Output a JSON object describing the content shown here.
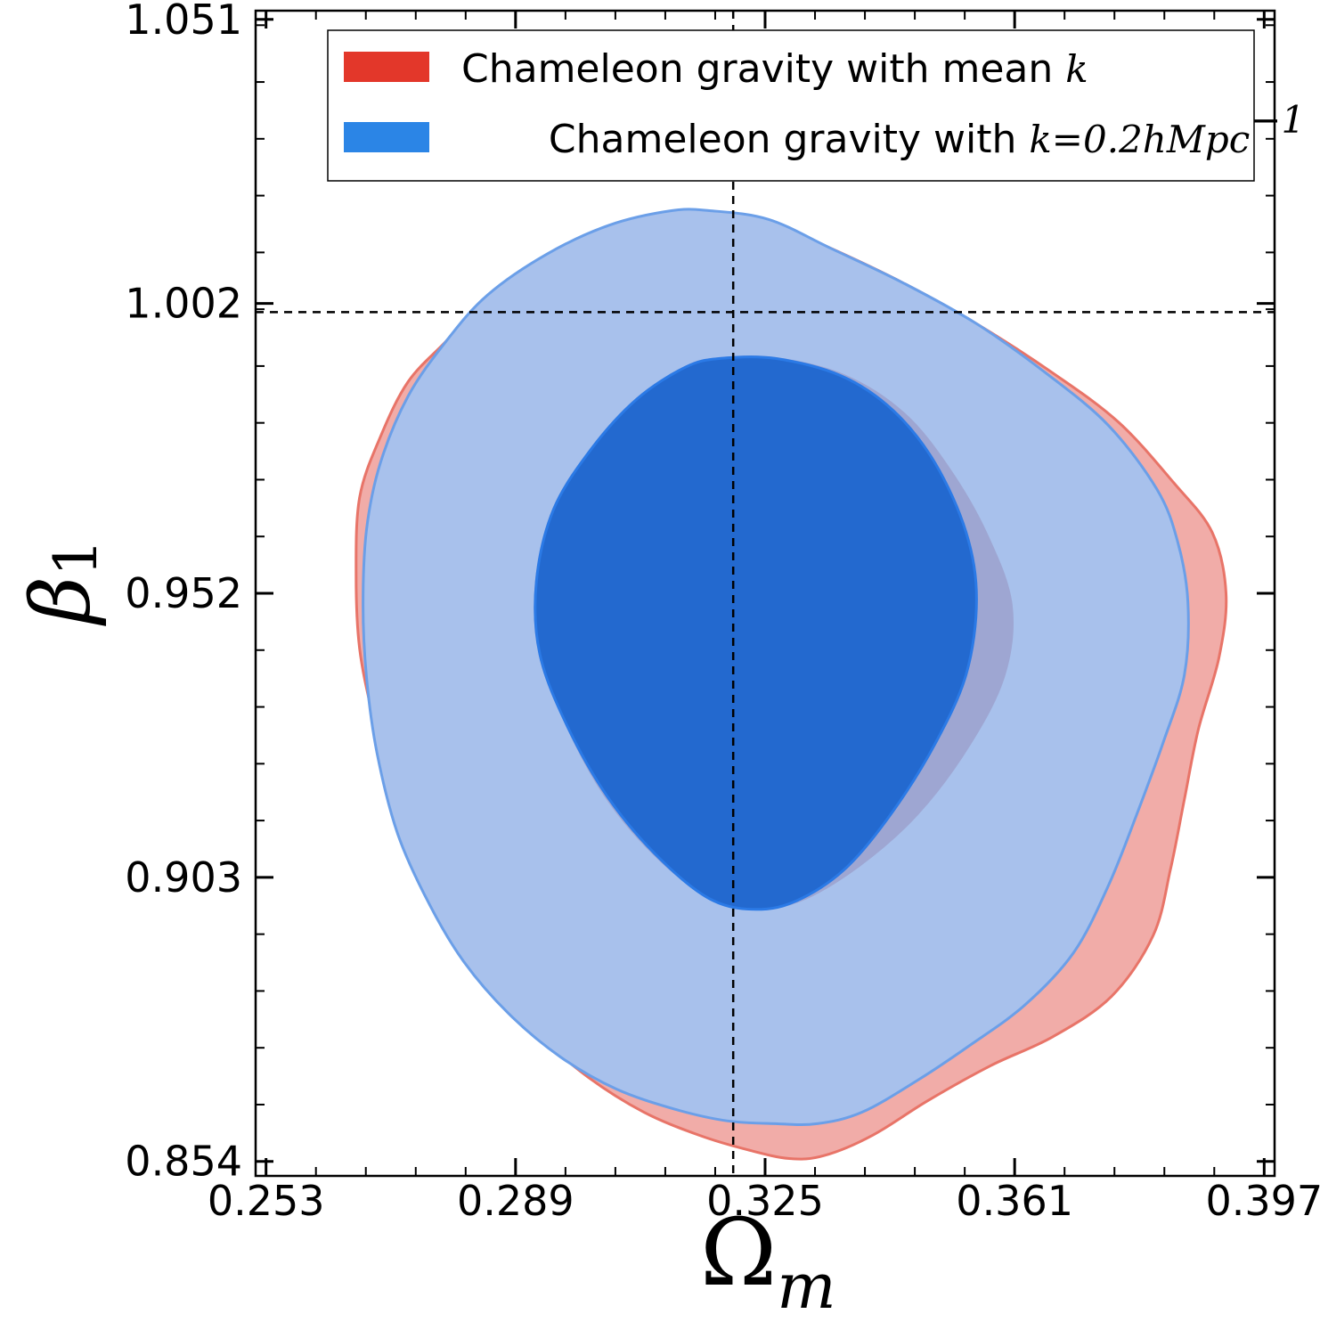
{
  "chart_data": {
    "type": "contour",
    "xlabel": "Ω",
    "xlabel_sub": "m",
    "ylabel": "β",
    "ylabel_sub": "1",
    "xlim": [
      0.2515,
      0.3985
    ],
    "ylim": [
      0.8515,
      1.0525
    ],
    "x_ticks": [
      0.253,
      0.289,
      0.325,
      0.361,
      0.397
    ],
    "x_tick_labels": [
      "0.253",
      "0.289",
      "0.325",
      "0.361",
      "0.397"
    ],
    "y_ticks": [
      0.854,
      0.903,
      0.952,
      1.002,
      1.051
    ],
    "y_tick_labels": [
      "0.854",
      "0.903",
      "0.952",
      "1.002",
      "1.051"
    ],
    "reference_lines": {
      "x": 0.3204,
      "y": 1.0005
    },
    "legend": {
      "placement": "top-right",
      "entries": [
        {
          "prefix": "Chameleon gravity with mean ",
          "math": "k",
          "color": "#e3372a"
        },
        {
          "prefix": "Chameleon gravity with ",
          "math": "k=0.2hMpc",
          "sup": "−1",
          "color": "#2b85e6"
        }
      ]
    },
    "series": [
      {
        "name": "Chameleon gravity with mean k",
        "color": "#e3372a",
        "contours": [
          {
            "level": "outer",
            "fill": "#f1aca8",
            "edge": "#e87468",
            "points": [
              [
                0.317,
                1.0175
              ],
              [
                0.3255,
                1.016
              ],
              [
                0.3345,
                1.0115
              ],
              [
                0.345,
                1.0055
              ],
              [
                0.3555,
                0.9985
              ],
              [
                0.3665,
                0.99
              ],
              [
                0.376,
                0.9815
              ],
              [
                0.384,
                0.971
              ],
              [
                0.3895,
                0.9625
              ],
              [
                0.3915,
                0.952
              ],
              [
                0.3905,
                0.941
              ],
              [
                0.3875,
                0.9285
              ],
              [
                0.3855,
                0.9165
              ],
              [
                0.3835,
                0.9045
              ],
              [
                0.381,
                0.893
              ],
              [
                0.375,
                0.8825
              ],
              [
                0.3665,
                0.8755
              ],
              [
                0.3575,
                0.8705
              ],
              [
                0.3485,
                0.8645
              ],
              [
                0.3405,
                0.8585
              ],
              [
                0.3335,
                0.855
              ],
              [
                0.3285,
                0.8545
              ],
              [
                0.3225,
                0.856
              ],
              [
                0.3155,
                0.8585
              ],
              [
                0.3075,
                0.8625
              ],
              [
                0.2995,
                0.8685
              ],
              [
                0.2915,
                0.8765
              ],
              [
                0.2845,
                0.8845
              ],
              [
                0.279,
                0.8945
              ],
              [
                0.275,
                0.9055
              ],
              [
                0.2715,
                0.918
              ],
              [
                0.2685,
                0.9305
              ],
              [
                0.2665,
                0.9425
              ],
              [
                0.266,
                0.955
              ],
              [
                0.2665,
                0.9685
              ],
              [
                0.2695,
                0.979
              ],
              [
                0.2735,
                0.9885
              ],
              [
                0.279,
                0.9955
              ],
              [
                0.285,
                1.003
              ],
              [
                0.2935,
                1.0095
              ],
              [
                0.3025,
                1.0145
              ],
              [
                0.3115,
                1.017
              ]
            ]
          },
          {
            "level": "inner",
            "fill": "#9ea6d2",
            "edge": "#9ea6d2",
            "points": [
              [
                0.3185,
                0.9925
              ],
              [
                0.3265,
                0.9925
              ],
              [
                0.3365,
                0.9895
              ],
              [
                0.345,
                0.983
              ],
              [
                0.3515,
                0.9735
              ],
              [
                0.357,
                0.962
              ],
              [
                0.3605,
                0.95
              ],
              [
                0.3595,
                0.938
              ],
              [
                0.3545,
                0.926
              ],
              [
                0.347,
                0.914
              ],
              [
                0.3385,
                0.905
              ],
              [
                0.33,
                0.899
              ],
              [
                0.3235,
                0.898
              ],
              [
                0.3165,
                0.9
              ],
              [
                0.309,
                0.907
              ],
              [
                0.302,
                0.917
              ],
              [
                0.2965,
                0.929
              ],
              [
                0.2925,
                0.9415
              ],
              [
                0.292,
                0.954
              ],
              [
                0.2945,
                0.9665
              ],
              [
                0.3,
                0.977
              ],
              [
                0.3065,
                0.9855
              ],
              [
                0.3135,
                0.991
              ]
            ]
          }
        ]
      },
      {
        "name": "Chameleon gravity with k=0.2hMpc−1",
        "color": "#2b85e6",
        "contours": [
          {
            "level": "outer",
            "fill": "#a8c1ec",
            "edge": "#6b9fe8",
            "points": [
              [
                0.317,
                1.018
              ],
              [
                0.3255,
                1.0165
              ],
              [
                0.3345,
                1.0115
              ],
              [
                0.345,
                1.0055
              ],
              [
                0.3555,
                0.9985
              ],
              [
                0.3655,
                0.99
              ],
              [
                0.3745,
                0.981
              ],
              [
                0.3815,
                0.97
              ],
              [
                0.3845,
                0.961
              ],
              [
                0.386,
                0.9505
              ],
              [
                0.3855,
                0.938
              ],
              [
                0.3825,
                0.9265
              ],
              [
                0.3785,
                0.9135
              ],
              [
                0.3745,
                0.9015
              ],
              [
                0.3695,
                0.89
              ],
              [
                0.3625,
                0.881
              ],
              [
                0.3545,
                0.874
              ],
              [
                0.347,
                0.868
              ],
              [
                0.339,
                0.8625
              ],
              [
                0.3325,
                0.8605
              ],
              [
                0.3265,
                0.8605
              ],
              [
                0.3195,
                0.861
              ],
              [
                0.312,
                0.863
              ],
              [
                0.3035,
                0.8665
              ],
              [
                0.2955,
                0.872
              ],
              [
                0.288,
                0.8795
              ],
              [
                0.2815,
                0.8885
              ],
              [
                0.2765,
                0.8985
              ],
              [
                0.272,
                0.9105
              ],
              [
                0.269,
                0.9245
              ],
              [
                0.2675,
                0.9375
              ],
              [
                0.267,
                0.95
              ],
              [
                0.2675,
                0.963
              ],
              [
                0.2695,
                0.9745
              ],
              [
                0.2735,
                0.986
              ],
              [
                0.279,
                0.9955
              ],
              [
                0.285,
                1.0035
              ],
              [
                0.2935,
                1.0105
              ],
              [
                0.3025,
                1.0155
              ],
              [
                0.3115,
                1.018
              ]
            ]
          },
          {
            "level": "inner",
            "fill": "#2369cf",
            "edge": "#2b7ae6",
            "points": [
              [
                0.3185,
                0.9925
              ],
              [
                0.3265,
                0.9925
              ],
              [
                0.336,
                0.9895
              ],
              [
                0.3435,
                0.9835
              ],
              [
                0.3495,
                0.9745
              ],
              [
                0.354,
                0.9625
              ],
              [
                0.3555,
                0.951
              ],
              [
                0.354,
                0.938
              ],
              [
                0.3495,
                0.926
              ],
              [
                0.3435,
                0.9145
              ],
              [
                0.337,
                0.905
              ],
              [
                0.3305,
                0.8995
              ],
              [
                0.3245,
                0.8975
              ],
              [
                0.3175,
                0.899
              ],
              [
                0.31,
                0.906
              ],
              [
                0.3025,
                0.9165
              ],
              [
                0.2965,
                0.929
              ],
              [
                0.2925,
                0.9415
              ],
              [
                0.292,
                0.954
              ],
              [
                0.2945,
                0.9665
              ],
              [
                0.3,
                0.977
              ],
              [
                0.3065,
                0.9855
              ],
              [
                0.3135,
                0.991
              ]
            ]
          }
        ]
      }
    ]
  }
}
